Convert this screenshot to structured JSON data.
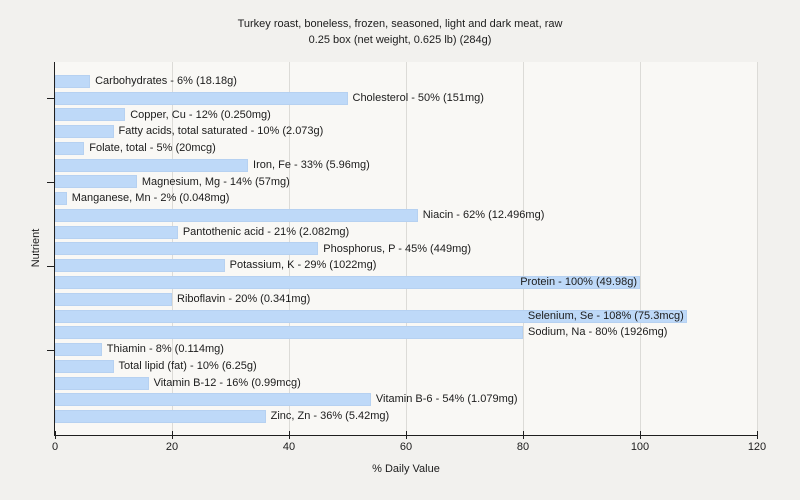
{
  "title": {
    "line1": "Turkey roast, boneless, frozen, seasoned, light and dark meat, raw",
    "line2": "0.25 box (net weight, 0.625 lb) (284g)"
  },
  "chart_data": {
    "type": "bar",
    "orientation": "horizontal",
    "title": "Turkey roast, boneless, frozen, seasoned, light and dark meat, raw 0.25 box (net weight, 0.625 lb) (284g)",
    "xlabel": "% Daily Value",
    "ylabel": "Nutrient",
    "xlim": [
      0,
      120
    ],
    "xticks": [
      0,
      20,
      40,
      60,
      80,
      100,
      120
    ],
    "grid": true,
    "legend": "none",
    "bar_color": "#bed9f8",
    "categories": [
      "Carbohydrates",
      "Cholesterol",
      "Copper, Cu",
      "Fatty acids, total saturated",
      "Folate, total",
      "Iron, Fe",
      "Magnesium, Mg",
      "Manganese, Mn",
      "Niacin",
      "Pantothenic acid",
      "Phosphorus, P",
      "Potassium, K",
      "Protein",
      "Riboflavin",
      "Selenium, Se",
      "Sodium, Na",
      "Thiamin",
      "Total lipid (fat)",
      "Vitamin B-12",
      "Vitamin B-6",
      "Zinc, Zn"
    ],
    "values": [
      6,
      50,
      12,
      10,
      5,
      33,
      14,
      2,
      62,
      21,
      45,
      29,
      100,
      20,
      108,
      80,
      8,
      10,
      16,
      54,
      36
    ],
    "amounts": [
      "18.18g",
      "151mg",
      "0.250mg",
      "2.073g",
      "20mcg",
      "5.96mg",
      "57mg",
      "0.048mg",
      "12.496mg",
      "2.082mg",
      "449mg",
      "1022mg",
      "49.98g",
      "0.341mg",
      "75.3mcg",
      "1926mg",
      "0.114mg",
      "6.25g",
      "0.99mcg",
      "1.079mg",
      "5.42mg"
    ],
    "bar_labels": [
      "Carbohydrates - 6% (18.18g)",
      "Cholesterol - 50% (151mg)",
      "Copper, Cu - 12% (0.250mg)",
      "Fatty acids, total saturated - 10% (2.073g)",
      "Folate, total - 5% (20mcg)",
      "Iron, Fe - 33% (5.96mg)",
      "Magnesium, Mg - 14% (57mg)",
      "Manganese, Mn - 2% (0.048mg)",
      "Niacin - 62% (12.496mg)",
      "Pantothenic acid - 21% (2.082mg)",
      "Phosphorus, P - 45% (449mg)",
      "Potassium, K - 29% (1022mg)",
      "Protein - 100% (49.98g)",
      "Riboflavin - 20% (0.341mg)",
      "Selenium, Se - 108% (75.3mcg)",
      "Sodium, Na - 80% (1926mg)",
      "Thiamin - 8% (0.114mg)",
      "Total lipid (fat) - 10% (6.25g)",
      "Vitamin B-12 - 16% (0.99mcg)",
      "Vitamin B-6 - 54% (1.079mg)",
      "Zinc, Zn - 36% (5.42mg)"
    ],
    "label_inside_bar": [
      false,
      false,
      false,
      false,
      false,
      false,
      false,
      false,
      false,
      false,
      false,
      false,
      true,
      false,
      true,
      false,
      false,
      false,
      false,
      false,
      false
    ],
    "ytick_row_indices": [
      1,
      6,
      11,
      16
    ]
  }
}
